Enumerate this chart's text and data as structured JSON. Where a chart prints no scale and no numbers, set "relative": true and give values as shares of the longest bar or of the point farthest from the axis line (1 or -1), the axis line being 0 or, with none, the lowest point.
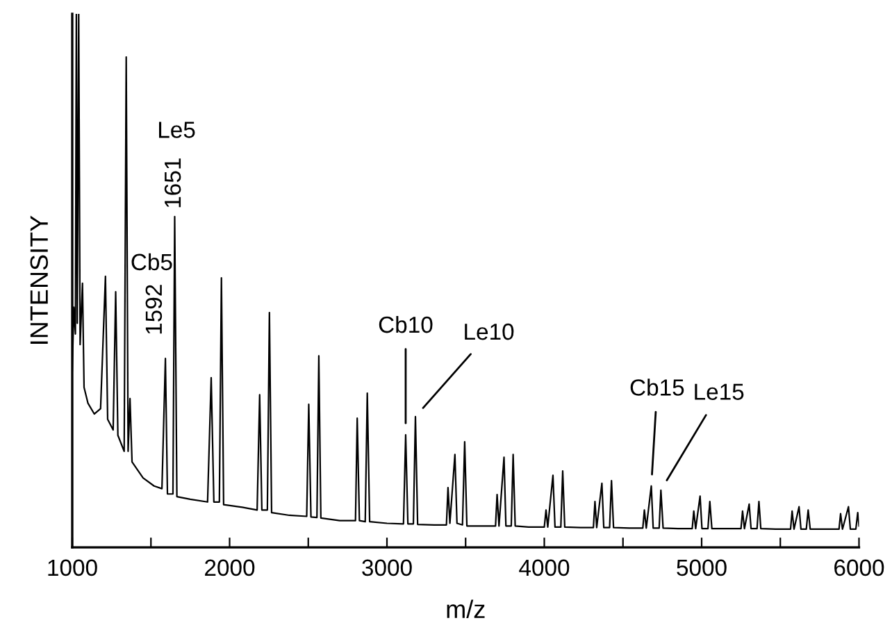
{
  "chart_data": {
    "type": "line",
    "relative": true,
    "xlabel": "m/z",
    "ylabel": "INTENSITY",
    "xlim": [
      1000,
      6000
    ],
    "xticks": [
      1000,
      {
        "value": 1500,
        "label": null
      },
      2000,
      {
        "value": 2500,
        "label": null
      },
      3000,
      {
        "value": 3500,
        "label": null
      },
      4000,
      {
        "value": 4500,
        "label": null
      },
      5000,
      {
        "value": 5500,
        "label": null
      },
      6000
    ],
    "grid": false,
    "legend": false,
    "marker": "none",
    "line_style": "solid",
    "series": [
      {
        "color": "#000000",
        "x": [
          1000,
          1010,
          1020,
          1026,
          1032,
          1041,
          1050,
          1065,
          1075,
          1100,
          1140,
          1180,
          1211,
          1225,
          1260,
          1276,
          1290,
          1330,
          1343,
          1355,
          1367,
          1380,
          1450,
          1520,
          1570,
          1592,
          1605,
          1640,
          1651,
          1665,
          1750,
          1860,
          1883,
          1900,
          1935,
          1948,
          1962,
          2080,
          2175,
          2191,
          2205,
          2240,
          2253,
          2267,
          2380,
          2490,
          2503,
          2517,
          2555,
          2567,
          2580,
          2700,
          2800,
          2811,
          2825,
          2862,
          2875,
          2890,
          3000,
          3105,
          3119,
          3133,
          3168,
          3181,
          3195,
          3300,
          3378,
          3388,
          3400,
          3432,
          3445,
          3480,
          3494,
          3508,
          3600,
          3690,
          3700,
          3712,
          3744,
          3756,
          3790,
          3802,
          3815,
          3900,
          4000,
          4011,
          4022,
          4055,
          4068,
          4105,
          4117,
          4130,
          4230,
          4312,
          4322,
          4333,
          4366,
          4378,
          4415,
          4427,
          4440,
          4540,
          4626,
          4636,
          4648,
          4680,
          4692,
          4730,
          4741,
          4755,
          4850,
          4940,
          4950,
          4962,
          4990,
          5002,
          5040,
          5052,
          5065,
          5160,
          5250,
          5260,
          5272,
          5302,
          5314,
          5352,
          5364,
          5376,
          5470,
          5565,
          5575,
          5587,
          5619,
          5631,
          5665,
          5677,
          5690,
          5780,
          5873,
          5883,
          5895,
          5933,
          5945,
          5980,
          5992,
          6000
        ],
        "values": [
          0.33,
          0.45,
          0.4,
          1.0,
          0.42,
          1.0,
          0.38,
          0.495,
          0.3,
          0.27,
          0.25,
          0.26,
          0.508,
          0.24,
          0.22,
          0.479,
          0.21,
          0.18,
          0.919,
          0.18,
          0.279,
          0.16,
          0.13,
          0.115,
          0.11,
          0.354,
          0.1,
          0.1,
          0.62,
          0.095,
          0.09,
          0.085,
          0.318,
          0.085,
          0.085,
          0.505,
          0.08,
          0.075,
          0.07,
          0.286,
          0.07,
          0.07,
          0.44,
          0.065,
          0.06,
          0.058,
          0.268,
          0.057,
          0.056,
          0.359,
          0.055,
          0.05,
          0.05,
          0.242,
          0.05,
          0.048,
          0.289,
          0.048,
          0.045,
          0.044,
          0.211,
          0.044,
          0.044,
          0.245,
          0.043,
          0.042,
          0.042,
          0.112,
          0.045,
          0.174,
          0.045,
          0.042,
          0.198,
          0.04,
          0.04,
          0.04,
          0.099,
          0.04,
          0.169,
          0.04,
          0.04,
          0.174,
          0.04,
          0.038,
          0.038,
          0.07,
          0.038,
          0.135,
          0.038,
          0.038,
          0.143,
          0.038,
          0.037,
          0.037,
          0.086,
          0.037,
          0.12,
          0.037,
          0.037,
          0.125,
          0.037,
          0.036,
          0.036,
          0.07,
          0.036,
          0.115,
          0.036,
          0.036,
          0.107,
          0.036,
          0.035,
          0.035,
          0.068,
          0.035,
          0.096,
          0.035,
          0.035,
          0.086,
          0.035,
          0.035,
          0.035,
          0.068,
          0.035,
          0.081,
          0.035,
          0.035,
          0.086,
          0.035,
          0.034,
          0.034,
          0.068,
          0.034,
          0.076,
          0.034,
          0.034,
          0.07,
          0.034,
          0.034,
          0.034,
          0.063,
          0.034,
          0.076,
          0.034,
          0.034,
          0.065,
          0.04
        ]
      }
    ],
    "annotations": [
      "Cb5",
      {
        "text": "1592",
        "x": 1592,
        "y": 0.354
      },
      "Le5",
      {
        "text": "1651",
        "x": 1651,
        "y": 0.62
      },
      {
        "text": "Cb10",
        "x": 3119,
        "y": 0.211
      },
      {
        "text": "Le10",
        "x": 3181,
        "y": 0.245
      },
      {
        "text": "Cb15",
        "x": 4680,
        "y": 0.115
      },
      {
        "text": "Le15",
        "x": 4741,
        "y": 0.107
      }
    ]
  }
}
